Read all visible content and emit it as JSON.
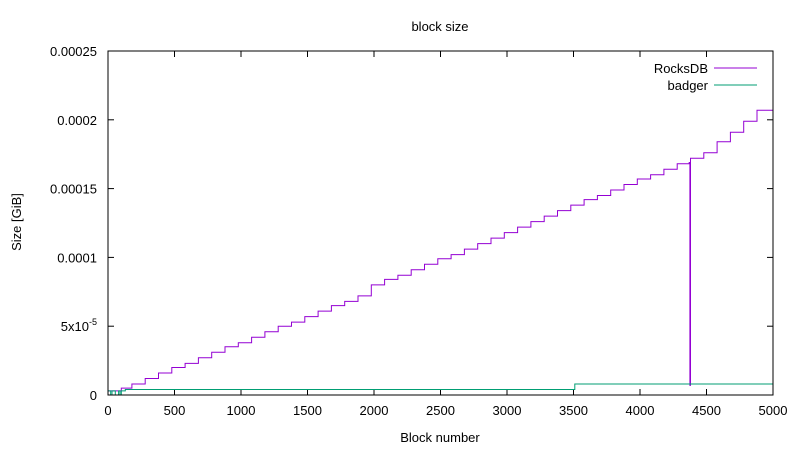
{
  "chart_data": {
    "type": "line",
    "title": "block size",
    "xlabel": "Block number",
    "ylabel": "Size [GiB]",
    "xlim": [
      0,
      5000
    ],
    "ylim": [
      0,
      0.00025
    ],
    "grid": false,
    "legend_position": "top-right",
    "x_ticks": [
      {
        "value": 0,
        "label": "0"
      },
      {
        "value": 500,
        "label": "500"
      },
      {
        "value": 1000,
        "label": "1000"
      },
      {
        "value": 1500,
        "label": "1500"
      },
      {
        "value": 2000,
        "label": "2000"
      },
      {
        "value": 2500,
        "label": "2500"
      },
      {
        "value": 3000,
        "label": "3000"
      },
      {
        "value": 3500,
        "label": "3500"
      },
      {
        "value": 4000,
        "label": "4000"
      },
      {
        "value": 4500,
        "label": "4500"
      },
      {
        "value": 5000,
        "label": "5000"
      }
    ],
    "y_ticks": [
      {
        "value": 0,
        "label": "0"
      },
      {
        "value": 5e-05,
        "label": "5x10",
        "sup": "-5"
      },
      {
        "value": 0.0001,
        "label": "0.0001"
      },
      {
        "value": 0.00015,
        "label": "0.00015"
      },
      {
        "value": 0.0002,
        "label": "0.0002"
      },
      {
        "value": 0.00025,
        "label": "0.00025"
      }
    ],
    "series": [
      {
        "name": "RocksDB",
        "color": "#9400d3",
        "style": "step",
        "x": [
          0,
          50,
          100,
          180,
          280,
          380,
          480,
          580,
          680,
          780,
          880,
          980,
          1080,
          1180,
          1280,
          1380,
          1480,
          1580,
          1680,
          1780,
          1880,
          1980,
          2080,
          2180,
          2280,
          2380,
          2480,
          2580,
          2680,
          2780,
          2880,
          2980,
          3080,
          3180,
          3280,
          3380,
          3480,
          3580,
          3680,
          3780,
          3880,
          3980,
          4080,
          4180,
          4280,
          4370,
          4375,
          4380,
          4480,
          4580,
          4680,
          4780,
          4880,
          5000
        ],
        "y": [
          3e-06,
          3e-06,
          5e-06,
          8e-06,
          1.2e-05,
          1.6e-05,
          2e-05,
          2.3e-05,
          2.7e-05,
          3.1e-05,
          3.5e-05,
          3.8e-05,
          4.2e-05,
          4.6e-05,
          5e-05,
          5.3e-05,
          5.7e-05,
          6.1e-05,
          6.5e-05,
          6.8e-05,
          7.2e-05,
          8e-05,
          8.4e-05,
          8.7e-05,
          9.1e-05,
          9.5e-05,
          9.9e-05,
          0.000102,
          0.000106,
          0.00011,
          0.000114,
          0.000118,
          0.000122,
          0.000126,
          0.00013,
          0.000134,
          0.000138,
          0.000142,
          0.000145,
          0.000149,
          0.000153,
          0.000157,
          0.00016,
          0.000164,
          0.000168,
          0.000169,
          7e-06,
          0.000172,
          0.000176,
          0.000184,
          0.000191,
          0.000199,
          0.000207,
          0.000207
        ]
      },
      {
        "name": "badger",
        "color": "#009e73",
        "style": "step",
        "x": [
          0,
          20,
          30,
          40,
          55,
          80,
          90,
          100,
          130,
          3500,
          3510,
          5000
        ],
        "y": [
          3e-06,
          0,
          3e-06,
          3e-06,
          0,
          3e-06,
          0,
          3e-06,
          4e-06,
          4e-06,
          8e-06,
          8e-06
        ]
      }
    ]
  }
}
